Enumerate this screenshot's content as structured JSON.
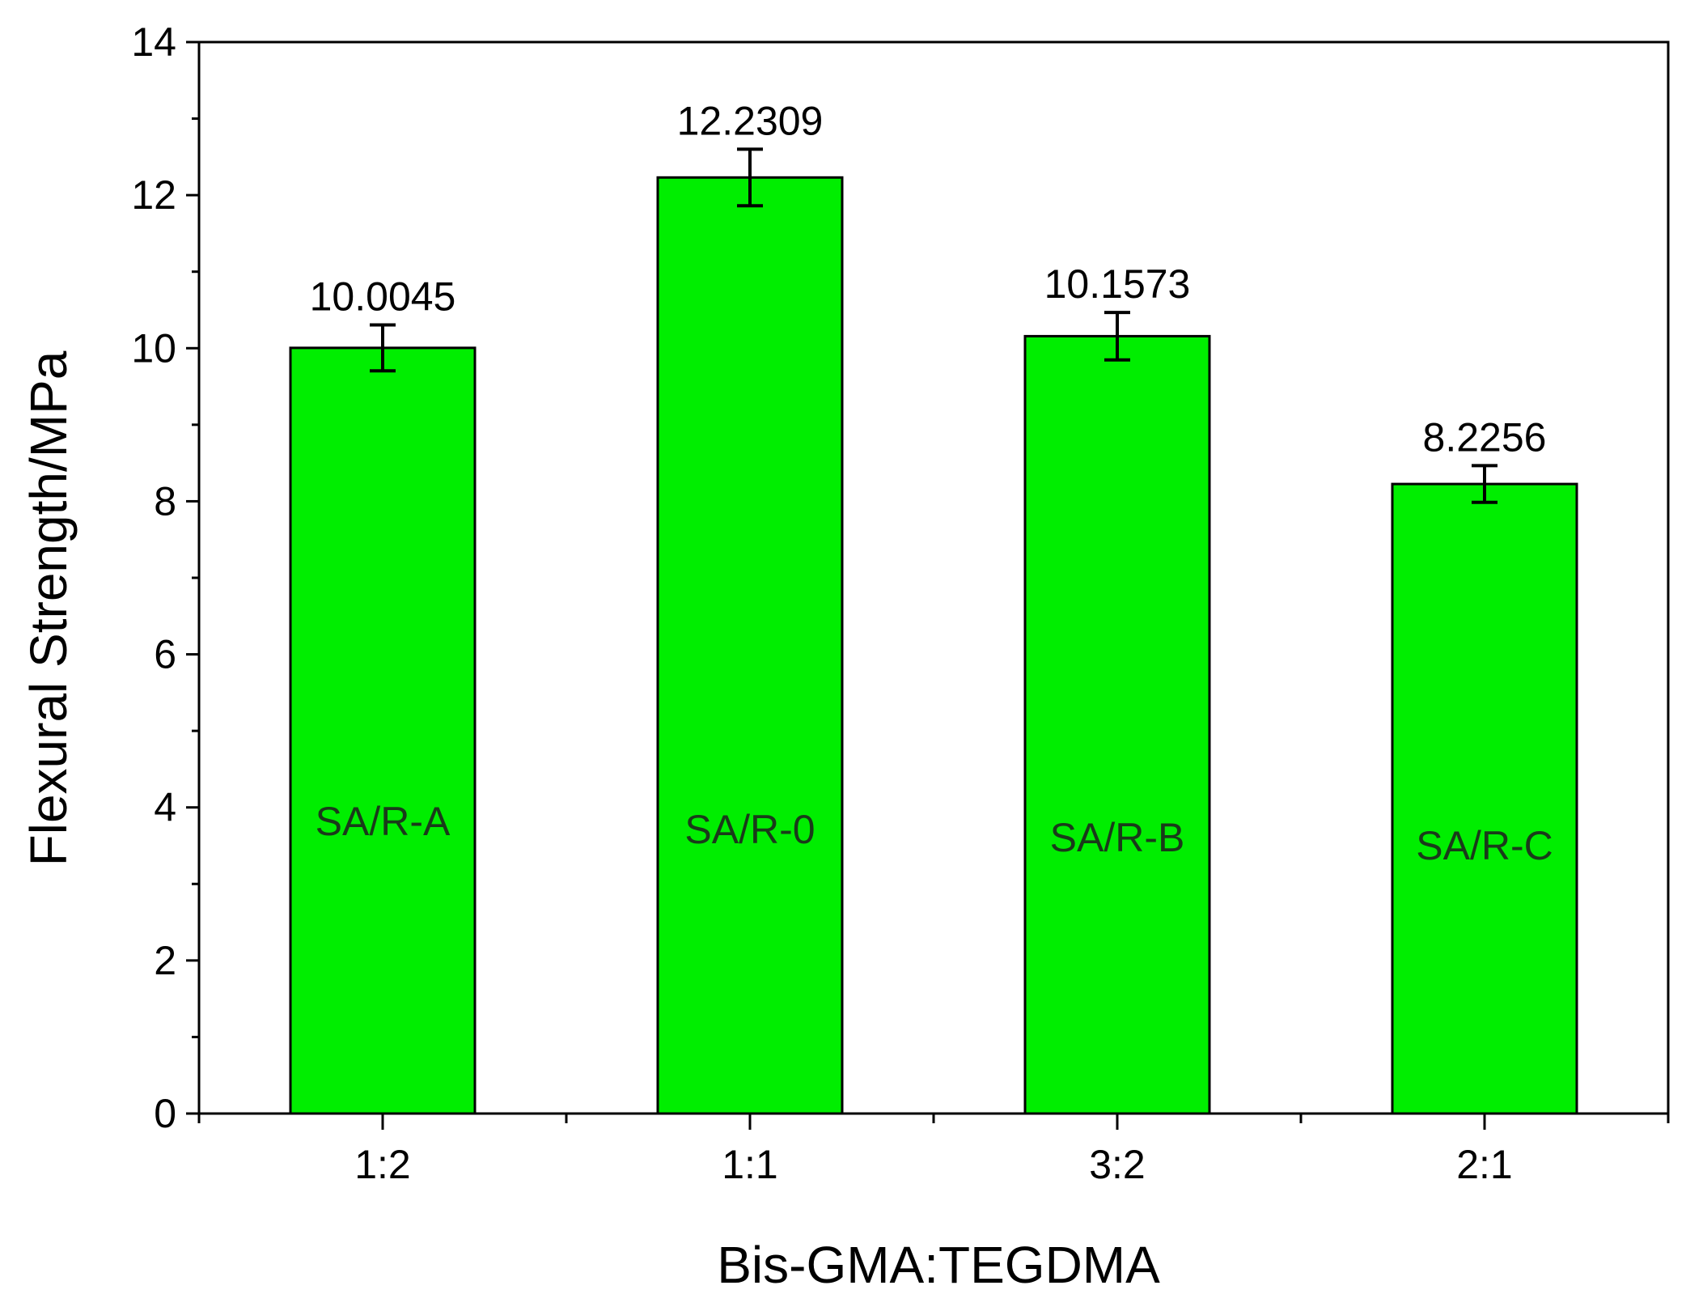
{
  "chart_data": {
    "type": "bar",
    "xlabel": "Bis-GMA:TEGDMA",
    "ylabel": "Flexural Strength/MPa",
    "categories": [
      "1:2",
      "1:1",
      "3:2",
      "2:1"
    ],
    "values": [
      10.0045,
      12.2309,
      10.1573,
      8.2256
    ],
    "error": [
      0.3,
      0.37,
      0.31,
      0.24
    ],
    "data_labels": [
      "10.0045",
      "12.2309",
      "10.1573",
      "8.2256"
    ],
    "bar_labels": [
      "SA/R-A",
      "SA/R-0",
      "SA/R-B",
      "SA/R-C"
    ],
    "ylim": [
      0,
      14
    ],
    "yticks": [
      0,
      2,
      4,
      6,
      8,
      10,
      12,
      14
    ],
    "ytick_labels": [
      "0",
      "2",
      "4",
      "6",
      "8",
      "10",
      "12",
      "14"
    ],
    "grid": false,
    "legend": "none",
    "colors": {
      "bar_fill": "#00ee00",
      "bar_stroke": "#000000",
      "axis": "#000000"
    }
  }
}
